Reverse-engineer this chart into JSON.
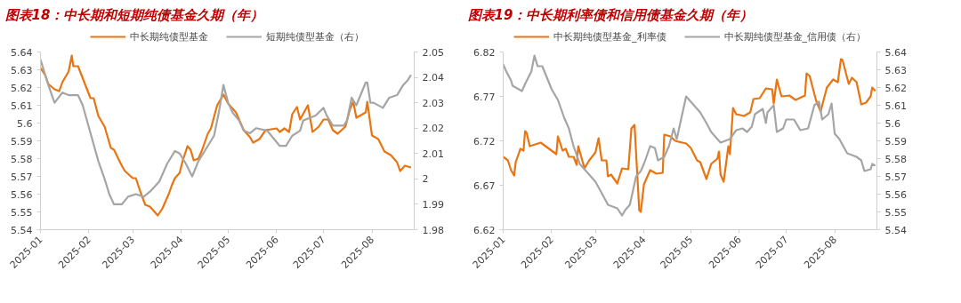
{
  "chart_data": [
    {
      "type": "line",
      "title": "图表18：中长期和短期纯债基金久期（年）",
      "legend": "top",
      "grid": false,
      "xlim": [
        "2025-01-01",
        "2025-08-28"
      ],
      "xticks": [
        "2025-01",
        "2025-02",
        "2025-03",
        "2025-04",
        "2025-05",
        "2025-06",
        "2025-07",
        "2025-08"
      ],
      "ylim": [
        5.54,
        5.64
      ],
      "yticks": [
        5.54,
        5.55,
        5.56,
        5.57,
        5.58,
        5.59,
        5.6,
        5.61,
        5.62,
        5.63,
        5.64
      ],
      "y2lim": [
        1.98,
        2.05
      ],
      "y2ticks": [
        1.98,
        1.99,
        2,
        2.01,
        2.02,
        2.03,
        2.04,
        2.05
      ],
      "series": [
        {
          "name": "中长期纯债型基金",
          "color": "#e87511",
          "x": [
            "2025-01-01",
            "2025-01-04",
            "2025-01-06",
            "2025-01-10",
            "2025-01-13",
            "2025-01-15",
            "2025-01-19",
            "2025-01-21",
            "2025-01-22",
            "2025-01-25",
            "2025-02-02",
            "2025-02-04",
            "2025-02-07",
            "2025-02-11",
            "2025-02-15",
            "2025-02-17",
            "2025-02-22",
            "2025-02-24",
            "2025-03-01",
            "2025-03-03",
            "2025-03-06",
            "2025-03-09",
            "2025-03-12",
            "2025-03-17",
            "2025-03-20",
            "2025-03-23",
            "2025-03-24",
            "2025-03-26",
            "2025-03-28",
            "2025-03-31",
            "2025-04-02",
            "2025-04-05",
            "2025-04-07",
            "2025-04-09",
            "2025-04-12",
            "2025-04-14",
            "2025-04-18",
            "2025-04-20",
            "2025-04-24",
            "2025-04-28",
            "2025-05-01",
            "2025-05-04",
            "2025-05-06",
            "2025-05-09",
            "2025-05-11",
            "2025-05-15",
            "2025-05-17",
            "2025-05-21",
            "2025-05-25",
            "2025-06-01",
            "2025-06-03",
            "2025-06-06",
            "2025-06-09",
            "2025-06-11",
            "2025-06-14",
            "2025-06-16",
            "2025-06-21",
            "2025-06-24",
            "2025-06-28",
            "2025-07-01",
            "2025-07-04",
            "2025-07-07",
            "2025-07-10",
            "2025-07-15",
            "2025-07-18",
            "2025-07-20",
            "2025-07-22",
            "2025-07-28",
            "2025-07-29",
            "2025-08-01",
            "2025-08-05",
            "2025-08-09",
            "2025-08-13",
            "2025-08-17",
            "2025-08-19",
            "2025-08-22",
            "2025-08-26"
          ],
          "values": [
            5.631,
            5.627,
            5.622,
            5.619,
            5.618,
            5.623,
            5.629,
            5.638,
            5.632,
            5.632,
            5.614,
            5.614,
            5.604,
            5.598,
            5.586,
            5.585,
            5.576,
            5.573,
            5.569,
            5.569,
            5.561,
            5.554,
            5.553,
            5.548,
            5.552,
            5.558,
            5.56,
            5.565,
            5.569,
            5.572,
            5.579,
            5.587,
            5.585,
            5.579,
            5.58,
            5.584,
            5.594,
            5.597,
            5.61,
            5.616,
            5.611,
            5.608,
            5.606,
            5.6,
            5.596,
            5.592,
            5.589,
            5.591,
            5.596,
            5.597,
            5.595,
            5.597,
            5.595,
            5.605,
            5.609,
            5.602,
            5.61,
            5.595,
            5.598,
            5.602,
            5.602,
            5.596,
            5.594,
            5.598,
            5.608,
            5.612,
            5.603,
            5.606,
            5.612,
            5.593,
            5.591,
            5.584,
            5.582,
            5.578,
            5.573,
            5.576,
            5.575
          ]
        },
        {
          "name": "短期纯债型基金（右）",
          "color": "#a5a5a5",
          "axis": "y2",
          "x": [
            "2025-01-01",
            "2025-01-06",
            "2025-01-10",
            "2025-01-15",
            "2025-01-19",
            "2025-01-25",
            "2025-01-28",
            "2025-02-02",
            "2025-02-07",
            "2025-02-11",
            "2025-02-14",
            "2025-02-17",
            "2025-02-22",
            "2025-02-26",
            "2025-03-03",
            "2025-03-08",
            "2025-03-12",
            "2025-03-18",
            "2025-03-23",
            "2025-03-28",
            "2025-03-31",
            "2025-04-04",
            "2025-04-08",
            "2025-04-12",
            "2025-04-18",
            "2025-04-22",
            "2025-04-25",
            "2025-04-28",
            "2025-05-01",
            "2025-05-04",
            "2025-05-08",
            "2025-05-11",
            "2025-05-15",
            "2025-05-19",
            "2025-05-26",
            "2025-06-03",
            "2025-06-07",
            "2025-06-11",
            "2025-06-16",
            "2025-06-18",
            "2025-06-26",
            "2025-07-01",
            "2025-07-03",
            "2025-07-07",
            "2025-07-14",
            "2025-07-16",
            "2025-07-19",
            "2025-07-22",
            "2025-07-28",
            "2025-07-29",
            "2025-07-31",
            "2025-08-02",
            "2025-08-08",
            "2025-08-12",
            "2025-08-17",
            "2025-08-21",
            "2025-08-24",
            "2025-08-26"
          ],
          "values": [
            2.047,
            2.037,
            2.03,
            2.034,
            2.033,
            2.033,
            2.029,
            2.018,
            2.007,
            2.0,
            1.994,
            1.99,
            1.99,
            1.993,
            1.994,
            1.993,
            1.995,
            1.999,
            2.006,
            2.011,
            2.01,
            2.006,
            2.001,
            2.007,
            2.013,
            2.017,
            2.026,
            2.037,
            2.03,
            2.026,
            2.023,
            2.019,
            2.018,
            2.02,
            2.019,
            2.013,
            2.013,
            2.017,
            2.019,
            2.023,
            2.025,
            2.028,
            2.025,
            2.021,
            2.021,
            2.023,
            2.032,
            2.029,
            2.038,
            2.038,
            2.03,
            2.03,
            2.028,
            2.032,
            2.033,
            2.037,
            2.039,
            2.041
          ]
        }
      ]
    },
    {
      "type": "line",
      "title": "图表19：中长期利率债和信用债基金久期（年）",
      "legend": "top",
      "grid": false,
      "xlim": [
        "2025-01-01",
        "2025-08-28"
      ],
      "xticks": [
        "2025-01",
        "2025-02",
        "2025-03",
        "2025-04",
        "2025-05",
        "2025-06",
        "2025-07",
        "2025-08"
      ],
      "ylim": [
        6.62,
        6.82
      ],
      "yticks": [
        6.62,
        6.67,
        6.72,
        6.77,
        6.82
      ],
      "y2lim": [
        5.54,
        5.64
      ],
      "y2ticks": [
        5.54,
        5.55,
        5.56,
        5.57,
        5.58,
        5.59,
        5.6,
        5.61,
        5.62,
        5.63,
        5.64
      ],
      "series": [
        {
          "name": "中长期纯债型基金_利率债",
          "color": "#e87511",
          "x": [
            "2025-01-01",
            "2025-01-04",
            "2025-01-06",
            "2025-01-08",
            "2025-01-09",
            "2025-01-12",
            "2025-01-14",
            "2025-01-15",
            "2025-01-16",
            "2025-01-18",
            "2025-01-25",
            "2025-02-04",
            "2025-02-05",
            "2025-02-08",
            "2025-02-10",
            "2025-02-12",
            "2025-02-15",
            "2025-02-17",
            "2025-02-18",
            "2025-02-22",
            "2025-02-25",
            "2025-03-01",
            "2025-03-03",
            "2025-03-05",
            "2025-03-08",
            "2025-03-09",
            "2025-03-11",
            "2025-03-15",
            "2025-03-18",
            "2025-03-22",
            "2025-03-24",
            "2025-03-26",
            "2025-03-29",
            "2025-03-30",
            "2025-04-01",
            "2025-04-05",
            "2025-04-09",
            "2025-04-13",
            "2025-04-14",
            "2025-04-18",
            "2025-04-21",
            "2025-04-28",
            "2025-05-01",
            "2025-05-05",
            "2025-05-07",
            "2025-05-11",
            "2025-05-14",
            "2025-05-18",
            "2025-05-19",
            "2025-05-20",
            "2025-05-22",
            "2025-05-25",
            "2025-05-26",
            "2025-05-28",
            "2025-05-30",
            "2025-06-04",
            "2025-06-08",
            "2025-06-10",
            "2025-06-14",
            "2025-06-18",
            "2025-06-22",
            "2025-06-23",
            "2025-06-25",
            "2025-06-28",
            "2025-07-03",
            "2025-07-07",
            "2025-07-13",
            "2025-07-14",
            "2025-07-16",
            "2025-07-20",
            "2025-07-23",
            "2025-07-27",
            "2025-07-31",
            "2025-08-03",
            "2025-08-05",
            "2025-08-06",
            "2025-08-10",
            "2025-08-12",
            "2025-08-15",
            "2025-08-18",
            "2025-08-21",
            "2025-08-24",
            "2025-08-25",
            "2025-08-27"
          ],
          "values": [
            6.702,
            6.698,
            6.687,
            6.681,
            6.696,
            6.711,
            6.709,
            6.731,
            6.729,
            6.714,
            6.718,
            6.705,
            6.725,
            6.709,
            6.711,
            6.702,
            6.702,
            6.693,
            6.714,
            6.689,
            6.698,
            6.707,
            6.723,
            6.698,
            6.698,
            6.68,
            6.682,
            6.672,
            6.689,
            6.688,
            6.734,
            6.738,
            6.642,
            6.64,
            6.671,
            6.687,
            6.683,
            6.684,
            6.727,
            6.725,
            6.72,
            6.717,
            6.712,
            6.698,
            6.696,
            6.677,
            6.694,
            6.7,
            6.708,
            6.682,
            6.674,
            6.714,
            6.705,
            6.757,
            6.75,
            6.748,
            6.752,
            6.767,
            6.768,
            6.779,
            6.778,
            6.762,
            6.789,
            6.77,
            6.771,
            6.766,
            6.771,
            6.796,
            6.793,
            6.766,
            6.753,
            6.78,
            6.789,
            6.786,
            6.812,
            6.811,
            6.784,
            6.791,
            6.786,
            6.761,
            6.763,
            6.77,
            6.78,
            6.776
          ]
        },
        {
          "name": "中长期纯债型基金_信用债（右）",
          "color": "#a5a5a5",
          "axis": "y2",
          "x": [
            "2025-01-01",
            "2025-01-03",
            "2025-01-06",
            "2025-01-07",
            "2025-01-13",
            "2025-01-15",
            "2025-01-19",
            "2025-01-21",
            "2025-01-23",
            "2025-01-26",
            "2025-02-01",
            "2025-02-05",
            "2025-02-09",
            "2025-02-12",
            "2025-02-15",
            "2025-02-19",
            "2025-02-25",
            "2025-03-01",
            "2025-03-06",
            "2025-03-09",
            "2025-03-15",
            "2025-03-18",
            "2025-03-20",
            "2025-03-23",
            "2025-03-27",
            "2025-03-30",
            "2025-04-01",
            "2025-04-05",
            "2025-04-08",
            "2025-04-10",
            "2025-04-14",
            "2025-04-17",
            "2025-04-20",
            "2025-04-22",
            "2025-04-25",
            "2025-04-28",
            "2025-05-01",
            "2025-05-07",
            "2025-05-11",
            "2025-05-14",
            "2025-05-18",
            "2025-05-20",
            "2025-05-26",
            "2025-05-30",
            "2025-06-03",
            "2025-06-06",
            "2025-06-09",
            "2025-06-11",
            "2025-06-16",
            "2025-06-18",
            "2025-06-19",
            "2025-06-23",
            "2025-06-25",
            "2025-06-29",
            "2025-07-01",
            "2025-07-06",
            "2025-07-10",
            "2025-07-15",
            "2025-07-19",
            "2025-07-22",
            "2025-07-24",
            "2025-07-28",
            "2025-07-30",
            "2025-08-01",
            "2025-08-04",
            "2025-08-09",
            "2025-08-15",
            "2025-08-18",
            "2025-08-20",
            "2025-08-24",
            "2025-08-25",
            "2025-08-27"
          ],
          "values": [
            5.633,
            5.629,
            5.624,
            5.621,
            5.618,
            5.622,
            5.629,
            5.638,
            5.632,
            5.632,
            5.619,
            5.613,
            5.603,
            5.597,
            5.587,
            5.577,
            5.571,
            5.567,
            5.559,
            5.554,
            5.552,
            5.548,
            5.551,
            5.554,
            5.57,
            5.573,
            5.577,
            5.587,
            5.586,
            5.579,
            5.581,
            5.587,
            5.597,
            5.591,
            5.603,
            5.615,
            5.612,
            5.606,
            5.6,
            5.595,
            5.591,
            5.589,
            5.591,
            5.596,
            5.597,
            5.595,
            5.598,
            5.605,
            5.608,
            5.6,
            5.606,
            5.61,
            5.595,
            5.597,
            5.602,
            5.602,
            5.596,
            5.597,
            5.61,
            5.612,
            5.602,
            5.605,
            5.611,
            5.594,
            5.591,
            5.583,
            5.581,
            5.579,
            5.573,
            5.574,
            5.577,
            5.576
          ]
        }
      ]
    }
  ]
}
